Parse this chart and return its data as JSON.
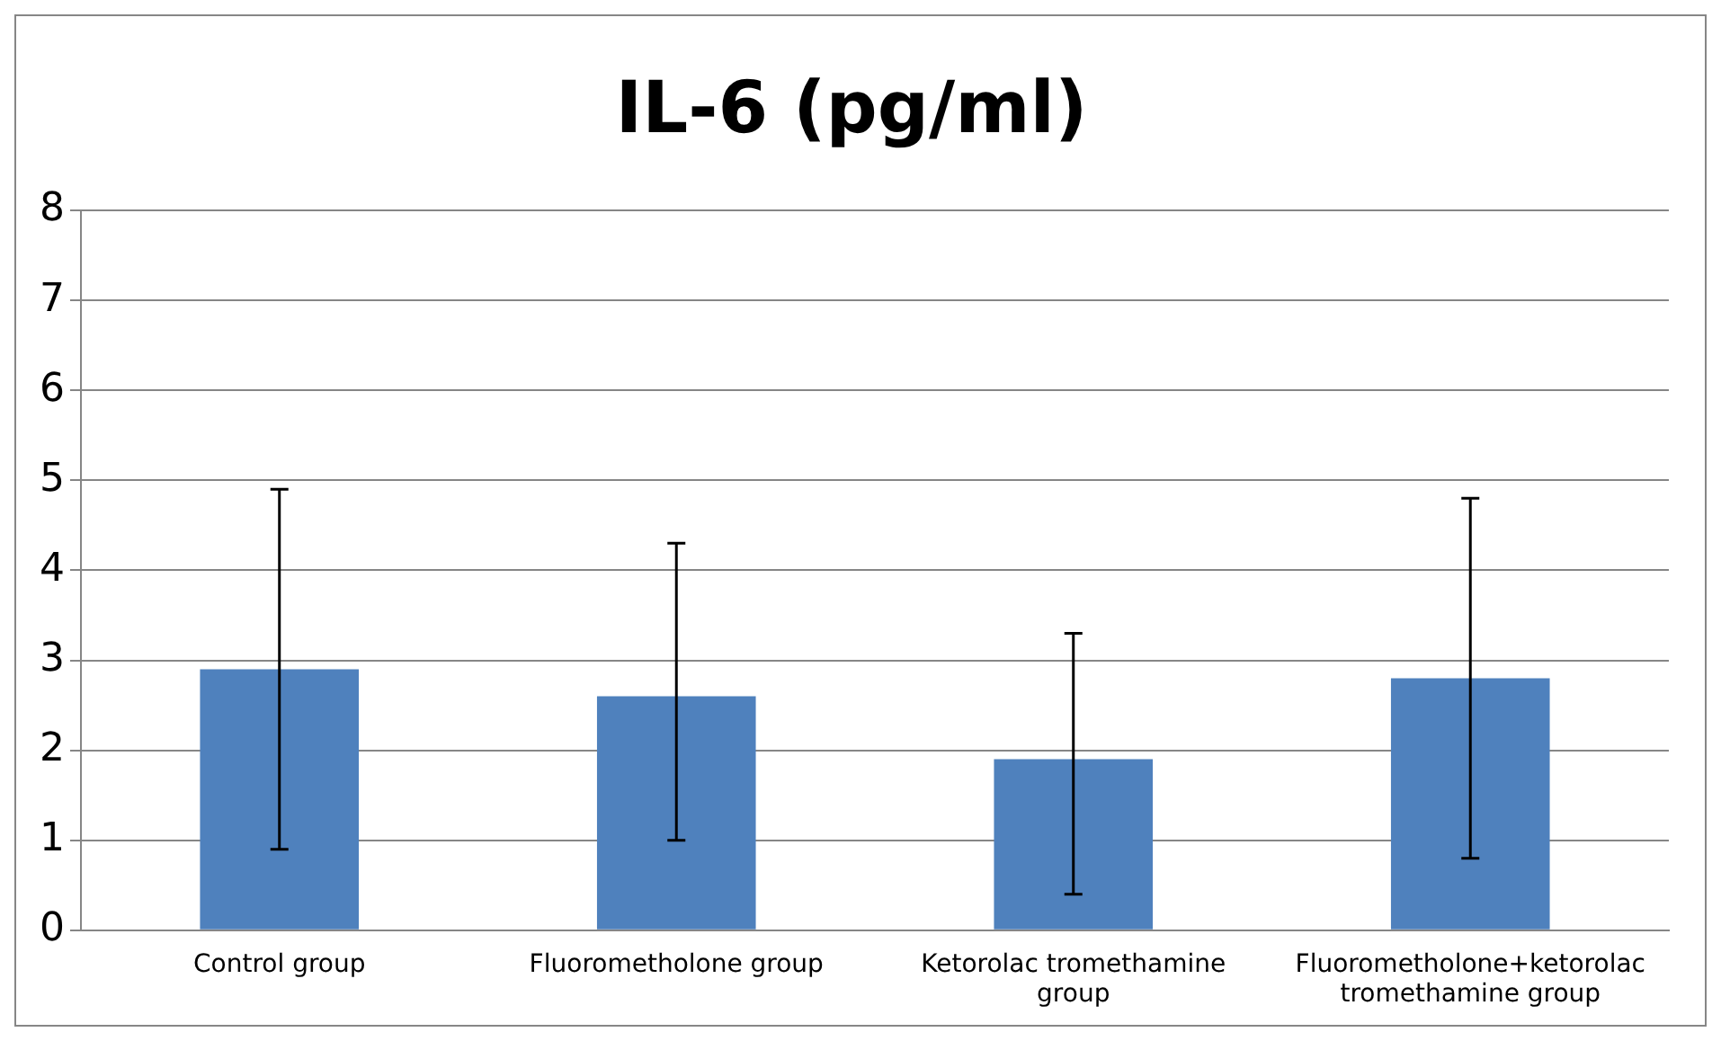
{
  "chart_data": {
    "type": "bar",
    "title": "IL-6 (pg/ml)",
    "categories": [
      "Control group",
      "Fluorometholone group",
      "Ketorolac tromethamine group",
      "Fluorometholone+ketorolac tromethamine group"
    ],
    "values": [
      2.9,
      2.6,
      1.9,
      2.8
    ],
    "errors": [
      [
        0.9,
        4.9
      ],
      [
        1.0,
        4.3
      ],
      [
        0.4,
        3.3
      ],
      [
        0.8,
        4.8
      ]
    ],
    "color": "#4f81bd",
    "ylim": [
      0,
      8
    ],
    "yticks": [
      0,
      1,
      2,
      3,
      4,
      5,
      6,
      7,
      8
    ],
    "grid": "y",
    "legend": false
  }
}
